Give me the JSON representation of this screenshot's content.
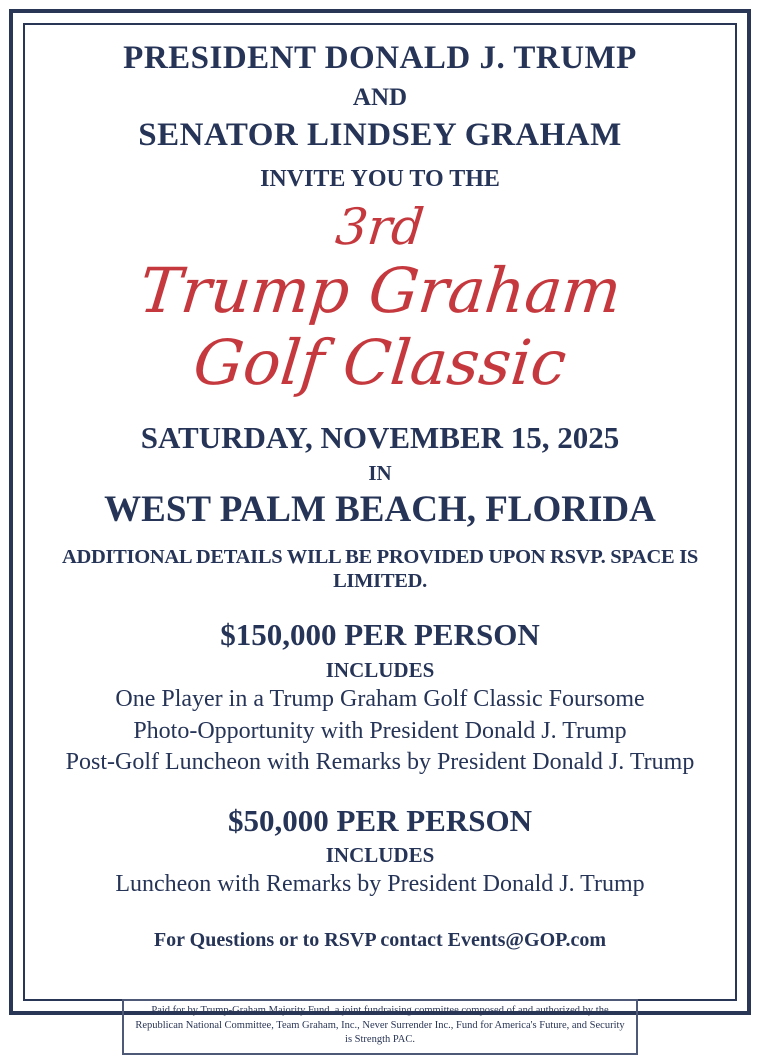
{
  "header": {
    "host1": "PRESIDENT DONALD J. TRUMP",
    "conjunction": "AND",
    "host2": "SENATOR LINDSEY GRAHAM",
    "invite": "INVITE YOU TO THE"
  },
  "event_title": {
    "line1": "3rd",
    "line2": "Trump Graham",
    "line3": "Golf Classic"
  },
  "event_details": {
    "date": "SATURDAY, NOVEMBER 15, 2025",
    "in_word": "IN",
    "location": "WEST PALM BEACH, FLORIDA",
    "note": "ADDITIONAL DETAILS WILL BE PROVIDED UPON RSVP. SPACE IS LIMITED."
  },
  "tiers": [
    {
      "price": "$150,000 PER PERSON",
      "includes_label": "INCLUDES",
      "items": [
        "One Player in a Trump Graham Golf Classic Foursome",
        "Photo-Opportunity with President Donald J. Trump",
        "Post-Golf Luncheon with Remarks by President Donald J. Trump"
      ]
    },
    {
      "price": "$50,000 PER PERSON",
      "includes_label": "INCLUDES",
      "items": [
        "Luncheon with Remarks by President Donald J. Trump"
      ]
    }
  ],
  "rsvp": "For Questions or to RSVP contact Events@GOP.com",
  "disclaimer": "Paid for by Trump-Graham Majority Fund, a joint fundraising committee composed of and authorized by the Republican National Committee, Team Graham, Inc., Never Surrender Inc., Fund for America's Future, and Security is Strength PAC.",
  "colors": {
    "navy": "#263457",
    "script_red": "#C5393E",
    "rule_red": "#C8153A"
  }
}
